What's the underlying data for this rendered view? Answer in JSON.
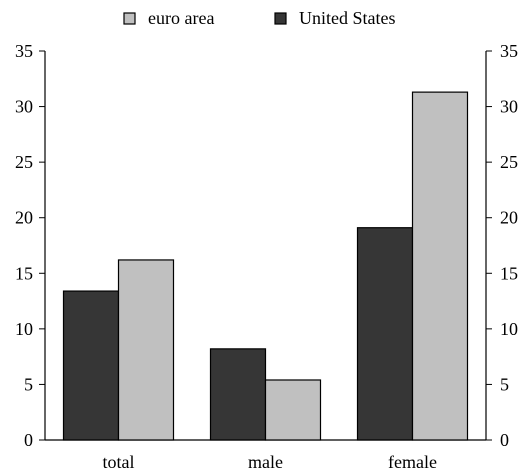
{
  "chart_data": {
    "type": "bar",
    "categories": [
      "total",
      "male",
      "female"
    ],
    "series": [
      {
        "name": "United States",
        "values": [
          13.4,
          8.2,
          19.1
        ],
        "color": "#363636"
      },
      {
        "name": "euro area",
        "values": [
          16.2,
          5.4,
          31.3
        ],
        "color": "#c0c0c0"
      }
    ],
    "legend_order": [
      "euro area",
      "United States"
    ],
    "legend_position": "top-center",
    "ylim": [
      0,
      35
    ],
    "yticks": [
      0,
      5,
      10,
      15,
      20,
      25,
      30,
      35
    ],
    "right_axis": true,
    "grid": false,
    "title": "",
    "xlabel": "",
    "ylabel": ""
  }
}
